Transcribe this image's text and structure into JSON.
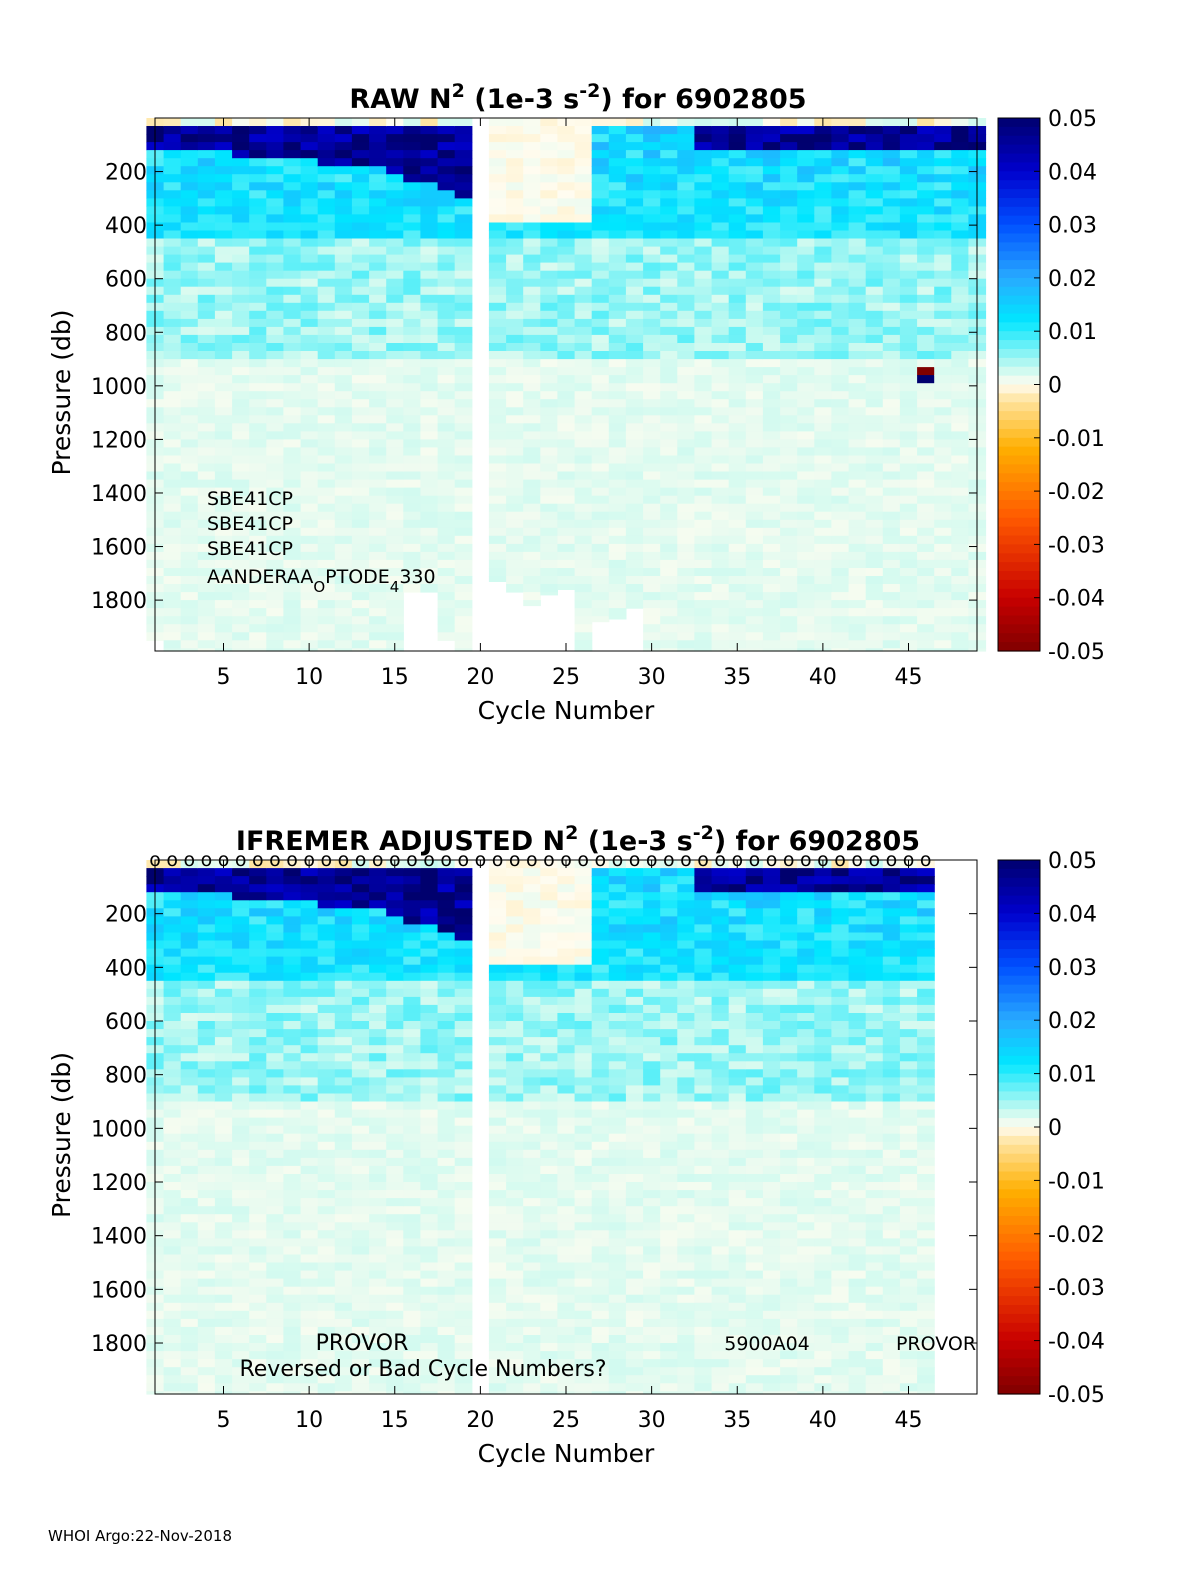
{
  "footer": "WHOI Argo:22-Nov-2018",
  "chart_data": [
    {
      "type": "heatmap",
      "title": {
        "prefix": "RAW N",
        "sup1": "2",
        "mid": " (1e-3 s",
        "sup2": "-2",
        "suffix": ") for 6902805"
      },
      "xlabel": "Cycle Number",
      "ylabel": "Pressure (db)",
      "xlim": [
        1,
        49
      ],
      "ylim": [
        1990,
        0
      ],
      "xticks": [
        5,
        10,
        15,
        20,
        25,
        30,
        35,
        40,
        45
      ],
      "yticks": [
        200,
        400,
        600,
        800,
        1000,
        1200,
        1400,
        1600,
        1800
      ],
      "colorbar": {
        "min": -0.05,
        "max": 0.05,
        "ticks": [
          "0.05",
          "0.04",
          "0.03",
          "0.02",
          "0.01",
          "0",
          "-0.01",
          "-0.02",
          "-0.03",
          "-0.04",
          "-0.05"
        ],
        "colormap": "blue-cyan-white-yellow-red"
      },
      "missing_cycles": [
        20
      ],
      "max_cycle": 49,
      "profile_max_pressure": {
        "1": 1950,
        "16": 1770,
        "17": 1770,
        "18": 1950,
        "21": 1730,
        "22": 1770,
        "23": 1820,
        "24": 1780,
        "25": 1760,
        "27": 1880,
        "28": 1870,
        "29": 1830
      },
      "extreme_cell": {
        "cycle": 46,
        "pressure": 940,
        "value": -0.05
      },
      "sensors": [
        "SBE41CP",
        "SBE41CP",
        "SBE41CP",
        "AANDERAA_OPTODE_4330"
      ],
      "sensor_label": {
        "main": "AANDERAA",
        "sub1": "O",
        "mid": "PTODE",
        "sub2": "4",
        "end": "330"
      }
    },
    {
      "type": "heatmap",
      "title": {
        "prefix": "IFREMER  ADJUSTED N",
        "sup1": "2",
        "mid": " (1e-3 s",
        "sup2": "-2",
        "suffix": ") for 6902805"
      },
      "xlabel": "Cycle Number",
      "ylabel": "Pressure (db)",
      "xlim": [
        1,
        49
      ],
      "ylim": [
        1990,
        0
      ],
      "xticks": [
        5,
        10,
        15,
        20,
        25,
        30,
        35,
        40,
        45
      ],
      "yticks": [
        200,
        400,
        600,
        800,
        1000,
        1200,
        1400,
        1600,
        1800
      ],
      "colorbar": {
        "min": -0.05,
        "max": 0.05,
        "ticks": [
          "0.05",
          "0.04",
          "0.03",
          "0.02",
          "0.01",
          "0",
          "-0.01",
          "-0.02",
          "-0.03",
          "-0.04",
          "-0.05"
        ],
        "colormap": "blue-cyan-white-yellow-red"
      },
      "missing_cycles": [
        20
      ],
      "max_cycle": 46,
      "qc_marker": "o",
      "annotations": [
        "PROVOR",
        "Reversed or Bad Cycle Numbers?",
        "5900A04",
        "PROVOR"
      ]
    }
  ]
}
